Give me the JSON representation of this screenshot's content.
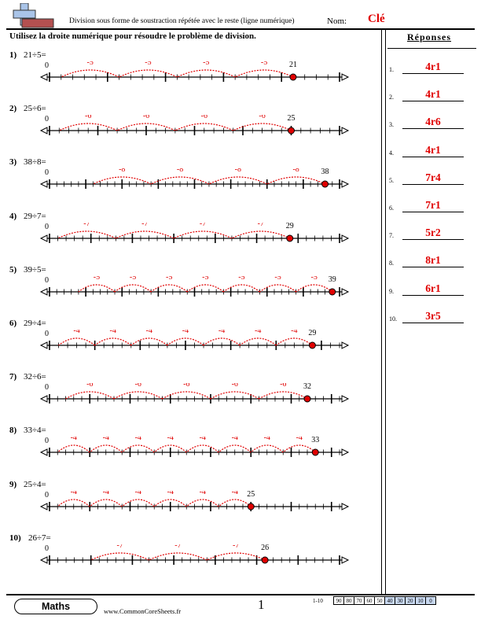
{
  "header": {
    "title": "Division sous forme de soustraction répétée avec le reste (ligne numérique)",
    "name_label": "Nom:",
    "key_label": "Clé"
  },
  "instructions": "Utilisez la droite numérique pour résoudre le problème de division.",
  "answers_heading": "Réponses",
  "problems": [
    {
      "num": "1)",
      "text": "21÷5=",
      "total": 21,
      "step": 5,
      "axis_max": 25,
      "jump_label": "-5",
      "end_label": "21",
      "zero_label": "0"
    },
    {
      "num": "2)",
      "text": "25÷6=",
      "total": 25,
      "step": 6,
      "axis_max": 30,
      "jump_label": "-6",
      "end_label": "25",
      "zero_label": "0"
    },
    {
      "num": "3)",
      "text": "38÷8=",
      "total": 38,
      "step": 8,
      "axis_max": 40,
      "jump_label": "-8",
      "end_label": "38",
      "zero_label": "0"
    },
    {
      "num": "4)",
      "text": "29÷7=",
      "total": 29,
      "step": 7,
      "axis_max": 35,
      "jump_label": "-7",
      "end_label": "29",
      "zero_label": "0"
    },
    {
      "num": "5)",
      "text": "39÷5=",
      "total": 39,
      "step": 5,
      "axis_max": 40,
      "jump_label": "-5",
      "end_label": "39",
      "zero_label": "0"
    },
    {
      "num": "6)",
      "text": "29÷4=",
      "total": 29,
      "step": 4,
      "axis_max": 32,
      "jump_label": "-4",
      "end_label": "29",
      "zero_label": "0"
    },
    {
      "num": "7)",
      "text": "32÷6=",
      "total": 32,
      "step": 6,
      "axis_max": 36,
      "jump_label": "-6",
      "end_label": "32",
      "zero_label": "0"
    },
    {
      "num": "8)",
      "text": "33÷4=",
      "total": 33,
      "step": 4,
      "axis_max": 36,
      "jump_label": "-4",
      "end_label": "33",
      "zero_label": "0"
    },
    {
      "num": "9)",
      "text": "25÷4=",
      "total": 25,
      "step": 4,
      "axis_max": 36,
      "jump_label": "-4",
      "end_label": "25",
      "zero_label": "0"
    },
    {
      "num": "10)",
      "text": "26÷7=",
      "total": 26,
      "step": 7,
      "axis_max": 35,
      "jump_label": "-7",
      "end_label": "26",
      "zero_label": "0"
    }
  ],
  "answers": [
    {
      "num": "1.",
      "value": "4r1"
    },
    {
      "num": "2.",
      "value": "4r1"
    },
    {
      "num": "3.",
      "value": "4r6"
    },
    {
      "num": "4.",
      "value": "4r1"
    },
    {
      "num": "5.",
      "value": "7r4"
    },
    {
      "num": "6.",
      "value": "7r1"
    },
    {
      "num": "7.",
      "value": "5r2"
    },
    {
      "num": "8.",
      "value": "8r1"
    },
    {
      "num": "9.",
      "value": "6r1"
    },
    {
      "num": "10.",
      "value": "3r5"
    }
  ],
  "footer": {
    "subject": "Maths",
    "website": "www.CommonCoreSheets.fr",
    "page": "1",
    "score_label": "1-10",
    "scores": [
      "90",
      "80",
      "70",
      "60",
      "50",
      "40",
      "30",
      "20",
      "10",
      "0"
    ]
  },
  "colors": {
    "accent_red": "#e00000",
    "score_shade": "#c8d8f0",
    "logo_blue": "#a9c4e8",
    "logo_brown": "#b35050"
  }
}
